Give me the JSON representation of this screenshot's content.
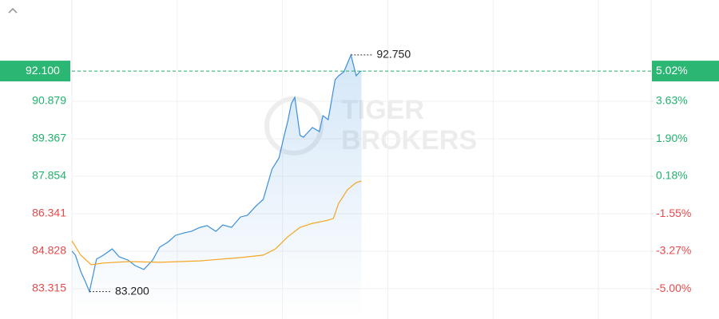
{
  "chart_data": {
    "type": "line",
    "ylim": [
      82.092,
      94.967
    ],
    "yticks": [
      83.315,
      84.828,
      86.341,
      87.854,
      89.367,
      90.879
    ],
    "y2lim": [
      -6.39,
      8.29
    ],
    "y2ticks": [
      {
        "value": -5.0,
        "label": "-5.00%"
      },
      {
        "value": -3.27,
        "label": "-3.27%"
      },
      {
        "value": -1.55,
        "label": "-1.55%"
      },
      {
        "value": 0.18,
        "label": "0.18%"
      },
      {
        "value": 1.9,
        "label": "1.90%"
      },
      {
        "value": 3.63,
        "label": "3.63%"
      }
    ],
    "xlim": [
      0,
      330
    ],
    "xticks": [
      60,
      120,
      180,
      240,
      300
    ],
    "grid": true,
    "up_color": "#21b26b",
    "down_color": "#e8494b",
    "series": [
      {
        "color": "#3b8fdc",
        "x": [
          0,
          2,
          5,
          8,
          10,
          14,
          18,
          23,
          27,
          32,
          36,
          41,
          46,
          50,
          55,
          59,
          64,
          68,
          73,
          77,
          82,
          86,
          91,
          96,
          100,
          105,
          109,
          114,
          118,
          121,
          123,
          125,
          127,
          130,
          132,
          137,
          141,
          143,
          146,
          150,
          152,
          155,
          159,
          162,
          164,
          165
        ],
        "values": [
          84.83,
          84.67,
          84.02,
          83.54,
          83.2,
          84.51,
          84.67,
          84.92,
          84.6,
          84.47,
          84.25,
          84.09,
          84.47,
          84.99,
          85.21,
          85.47,
          85.57,
          85.63,
          85.79,
          85.86,
          85.63,
          85.89,
          85.79,
          86.21,
          86.28,
          86.66,
          86.92,
          88.14,
          88.59,
          89.5,
          90.07,
          90.78,
          91.04,
          89.5,
          89.43,
          89.82,
          89.66,
          90.3,
          90.14,
          91.75,
          91.91,
          92.07,
          92.75,
          91.91,
          92.07,
          92.1
        ]
      },
      {
        "color": "#f5a623",
        "x": [
          0,
          5,
          11,
          18,
          32,
          50,
          73,
          96,
          109,
          116,
          123,
          130,
          137,
          146,
          149,
          152,
          157,
          162,
          165
        ],
        "values": [
          85.25,
          84.67,
          84.28,
          84.35,
          84.41,
          84.38,
          84.44,
          84.57,
          84.67,
          84.92,
          85.41,
          85.79,
          85.95,
          86.08,
          86.15,
          86.76,
          87.31,
          87.6,
          87.66
        ]
      }
    ],
    "annotations": [
      {
        "label": "92.750",
        "x": 159,
        "y": 92.75
      },
      {
        "label": "83.200",
        "x": 10,
        "y": 83.2
      }
    ],
    "last_price": {
      "value": 92.1,
      "label": "92.100",
      "change": 5.02,
      "change_label": "5.02%"
    },
    "watermark": [
      "TIGER",
      "BROKERS"
    ]
  }
}
